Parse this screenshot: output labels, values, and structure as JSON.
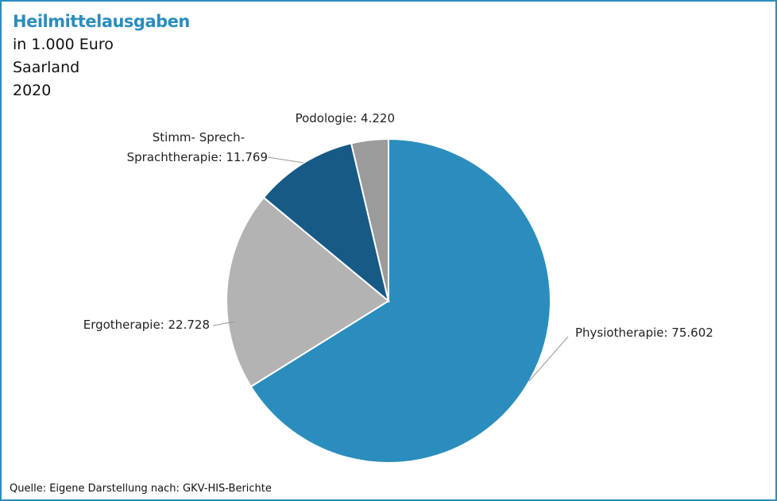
{
  "title": "Heilmittelausgaben",
  "subtitle_lines": [
    "in 1.000 Euro",
    "Saarland",
    "2020"
  ],
  "source": "Quelle: Eigene Darstellung nach: GKV-HIS-Berichte",
  "colors": {
    "frame": "#2a8dbd",
    "title": "#2a8dbd",
    "physiotherapie": "#2a8dbd",
    "ergotherapie": "#b3b3b3",
    "sprachtherapie": "#175a85",
    "podologie": "#9b9b9b"
  },
  "chart_data": {
    "type": "pie",
    "title": "Heilmittelausgaben",
    "unit": "in 1.000 Euro",
    "slices": [
      {
        "label": "Physiotherapie",
        "value": 75602,
        "value_text": "75.602",
        "color": "#2a8dbd",
        "label_lines": [
          "Physiotherapie: 75.602"
        ]
      },
      {
        "label": "Ergotherapie",
        "value": 22728,
        "value_text": "22.728",
        "color": "#b3b3b3",
        "label_lines": [
          "Ergotherapie: 22.728"
        ]
      },
      {
        "label": "Stimm-Sprech-Sprachtherapie",
        "value": 11769,
        "value_text": "11.769",
        "color": "#175a85",
        "label_lines": [
          "Stimm- Sprech-",
          "Sprachtherapie: 11.769"
        ]
      },
      {
        "label": "Podologie",
        "value": 4220,
        "value_text": "4.220",
        "color": "#9b9b9b",
        "label_lines": [
          "Podologie: 4.220"
        ]
      }
    ]
  }
}
